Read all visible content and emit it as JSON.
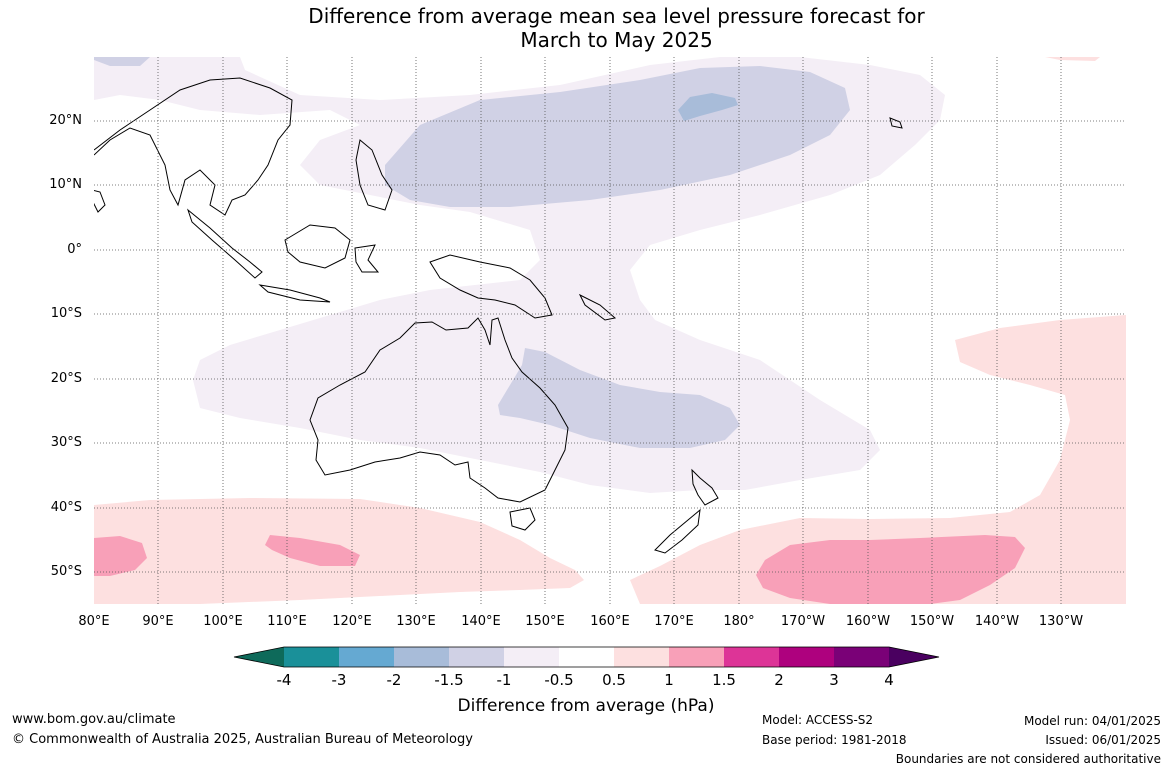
{
  "title": {
    "line1": "Difference from average mean sea level pressure forecast for",
    "line2": "March to May 2025"
  },
  "map": {
    "latitude_labels": [
      "20°N",
      "10°N",
      "0°",
      "10°S",
      "20°S",
      "30°S",
      "40°S",
      "50°S"
    ],
    "longitude_labels": [
      "80°E",
      "90°E",
      "100°E",
      "110°E",
      "120°E",
      "130°E",
      "140°E",
      "150°E",
      "160°E",
      "170°E",
      "180°",
      "170°W",
      "160°W",
      "150°W",
      "140°W",
      "130°W"
    ],
    "extent": {
      "lon_min": 80,
      "lon_max": 240,
      "lat_min": -55,
      "lat_max": 30
    },
    "colors": {
      "neg_0_5_to_1": "#f4eef6",
      "neg_1_to_1_5": "#d0d1e5",
      "neg_1_5_to_2": "#a8bcd9",
      "pos_0_5_to_1": "#fde0e0",
      "pos_1_to_1_5": "#f8a0b8"
    }
  },
  "colorbar": {
    "title": "Difference from average (hPa)",
    "tick_labels": [
      "-4",
      "-3",
      "-2",
      "-1.5",
      "-1",
      "-0.5",
      "0.5",
      "1",
      "1.5",
      "2",
      "3",
      "4"
    ],
    "colors": [
      "#0e6a5a",
      "#1a9099",
      "#65a9d2",
      "#a8bcd9",
      "#d0d1e5",
      "#f4eef6",
      "#ffffff",
      "#fde0e0",
      "#f8a0b8",
      "#dd3497",
      "#ae017e",
      "#7a0177",
      "#4a0060"
    ]
  },
  "footer": {
    "website": "www.bom.gov.au/climate",
    "copyright": "© Commonwealth of Australia 2025, Australian Bureau of Meteorology",
    "model": "Model: ACCESS-S2",
    "base_period": "Base period: 1981-2018",
    "model_run": "Model run: 04/01/2025",
    "issued": "Issued: 06/01/2025",
    "disclaimer": "Boundaries are not considered authoritative"
  }
}
